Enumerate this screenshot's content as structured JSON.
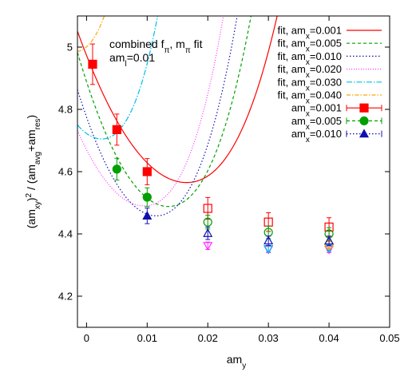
{
  "chart_data": {
    "type": "line",
    "annotation": {
      "line1": "combined f",
      "line1_sub": "π",
      "line1_rest": ", m",
      "line1_sub2": "π",
      "line1_tail": " fit",
      "line2": "am",
      "line2_sub": "l",
      "line2_tail": "=0.01"
    },
    "xlabel": {
      "main": "am",
      "sub": "y"
    },
    "ylabel": {
      "p1": "(am",
      "p1_sub": "xy",
      "p2": ")",
      "p2_sup": "2",
      "p3": " / (am",
      "p3_sub": "avg",
      "p4": "+am",
      "p4_sub": "res",
      "p5": ")"
    },
    "xlim": [
      -0.0015,
      0.05
    ],
    "ylim": [
      4.1,
      5.1
    ],
    "xticks": [
      0,
      0.01,
      0.02,
      0.03,
      0.04,
      0.05
    ],
    "xtick_labels": [
      "0",
      "0.01",
      "0.02",
      "0.03",
      "0.04",
      "0.05"
    ],
    "yticks": [
      4.2,
      4.4,
      4.6,
      4.8,
      5.0
    ],
    "ytick_labels": [
      "4.2",
      "4.4",
      "4.6",
      "4.8",
      "5"
    ],
    "grid": false,
    "legend_position": "top-right",
    "fits": [
      {
        "prefix": "fit, am",
        "sub": "x",
        "value": "=0.001",
        "color": "#ff0000",
        "dash": "",
        "a": 4.565,
        "b": 0.0165,
        "c": 1500,
        "c3": 60000
      },
      {
        "prefix": "fit, am",
        "sub": "x",
        "value": "=0.005",
        "color": "#00a000",
        "dash": "4,3",
        "a": 4.488,
        "b": 0.0135,
        "c": 2200,
        "c3": 80000
      },
      {
        "prefix": "fit, am",
        "sub": "x",
        "value": "=0.010",
        "color": "#1010b0",
        "dash": "1.5,2.5",
        "a": 4.458,
        "b": 0.0115,
        "c": 2400,
        "c3": 90000
      },
      {
        "prefix": "fit, am",
        "sub": "x",
        "value": "=0.020",
        "color": "#ff30ff",
        "dash": "1,2",
        "a": 4.49,
        "b": 0.0095,
        "c": 2000,
        "c3": 120000
      },
      {
        "prefix": "fit, am",
        "sub": "x",
        "value": "=0.030",
        "color": "#00bfe6",
        "dash": "7,2,1.5,2",
        "a": 4.705,
        "b": 0.0025,
        "c": 2800,
        "c3": 200000
      },
      {
        "prefix": "fit, am",
        "sub": "x",
        "value": "=0.040",
        "color": "#ffa500",
        "dash": "5,2,1.5,2",
        "a": 4.985,
        "b": -0.002,
        "c": 3500,
        "c3": 250000
      }
    ],
    "data_series": [
      {
        "prefix": "am",
        "sub": "x",
        "value": "=0.001",
        "color": "#ff0000",
        "marker": "square",
        "dash": "",
        "filled": [
          {
            "x": 0.001,
            "y": 4.945,
            "err": 0.065
          },
          {
            "x": 0.005,
            "y": 4.735,
            "err": 0.05
          },
          {
            "x": 0.01,
            "y": 4.6,
            "err": 0.042
          }
        ],
        "open": [
          {
            "x": 0.02,
            "y": 4.482,
            "err": 0.035
          },
          {
            "x": 0.03,
            "y": 4.438,
            "err": 0.03
          },
          {
            "x": 0.04,
            "y": 4.422,
            "err": 0.03
          }
        ]
      },
      {
        "prefix": "am",
        "sub": "x",
        "value": "=0.005",
        "color": "#00a000",
        "marker": "circle",
        "dash": "4,3",
        "filled": [
          {
            "x": 0.005,
            "y": 4.608,
            "err": 0.035
          },
          {
            "x": 0.01,
            "y": 4.518,
            "err": 0.03
          }
        ],
        "open": [
          {
            "x": 0.02,
            "y": 4.438,
            "err": 0.022
          },
          {
            "x": 0.03,
            "y": 4.405,
            "err": 0.02
          },
          {
            "x": 0.04,
            "y": 4.4,
            "err": 0.02
          }
        ]
      },
      {
        "prefix": "am",
        "sub": "x",
        "value": "=0.010",
        "color": "#1010b0",
        "marker": "triangle",
        "dash": "1.5,2.5",
        "filled": [
          {
            "x": 0.01,
            "y": 4.458,
            "err": 0.025
          }
        ],
        "open": [
          {
            "x": 0.02,
            "y": 4.402,
            "err": 0.02
          },
          {
            "x": 0.03,
            "y": 4.378,
            "err": 0.015
          },
          {
            "x": 0.04,
            "y": 4.378,
            "err": 0.015
          }
        ]
      }
    ],
    "extra_open_points": [
      {
        "color": "#ff30ff",
        "marker": "triangle-down",
        "points": [
          {
            "x": 0.02,
            "y": 4.362,
            "err": 0.012
          },
          {
            "x": 0.03,
            "y": 4.35,
            "err": 0.01
          },
          {
            "x": 0.04,
            "y": 4.35,
            "err": 0.01
          }
        ]
      },
      {
        "color": "#00bfe6",
        "marker": "triangle-down",
        "points": [
          {
            "x": 0.03,
            "y": 4.352,
            "err": 0.01
          },
          {
            "x": 0.04,
            "y": 4.355,
            "err": 0.01
          }
        ]
      },
      {
        "color": "#ffa500",
        "marker": "circle",
        "points": [
          {
            "x": 0.04,
            "y": 4.365,
            "err": 0.01
          }
        ]
      }
    ]
  }
}
